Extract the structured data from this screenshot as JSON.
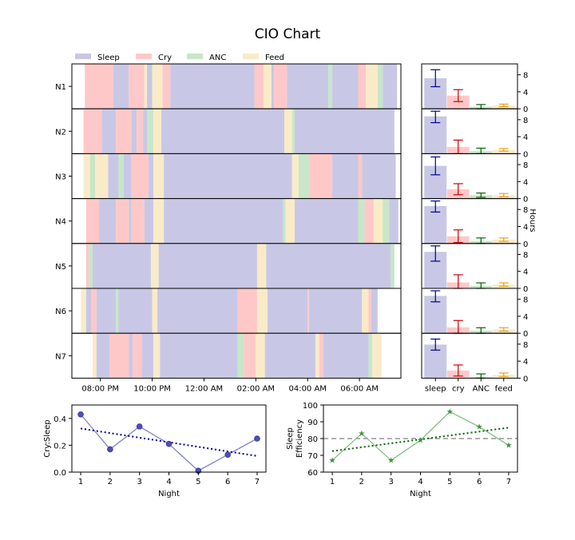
{
  "title": "CIO Chart",
  "colors": {
    "sleep": "#c8c8e6",
    "cry": "#ffc8c8",
    "anc": "#c8e6c8",
    "feed": "#faebc8"
  },
  "chart_data": [
    {
      "type": "timeline",
      "legend": [
        {
          "key": "sleep",
          "label": "Sleep"
        },
        {
          "key": "cry",
          "label": "Cry"
        },
        {
          "key": "anc",
          "label": "ANC"
        },
        {
          "key": "feed",
          "label": "Feed"
        }
      ],
      "x_ticks": [
        "08:00 PM",
        "10:00 PM",
        "12:00 AM",
        "02:00 AM",
        "04:00 AM",
        "06:00 AM"
      ],
      "x_tick_hours": [
        20,
        22,
        24,
        26,
        28,
        30
      ],
      "xlim_hours": [
        18.9,
        31.6
      ],
      "nights": [
        {
          "label": "N1",
          "segments": [
            [
              "cry",
              19.4,
              20.5
            ],
            [
              "sleep",
              20.5,
              21.1
            ],
            [
              "cry",
              21.1,
              21.7
            ],
            [
              "feed",
              21.7,
              21.8
            ],
            [
              "sleep",
              21.8,
              22.0
            ],
            [
              "feed",
              22.0,
              22.4
            ],
            [
              "cry",
              22.4,
              22.7
            ],
            [
              "sleep",
              22.7,
              25.95
            ],
            [
              "cry",
              25.95,
              26.3
            ],
            [
              "feed",
              26.3,
              26.6
            ],
            [
              "sleep",
              26.6,
              26.7
            ],
            [
              "cry",
              26.7,
              27.2
            ],
            [
              "sleep",
              27.2,
              28.8
            ],
            [
              "anc",
              28.8,
              28.95
            ],
            [
              "sleep",
              28.95,
              29.95
            ],
            [
              "cry",
              29.95,
              30.25
            ],
            [
              "feed",
              30.25,
              30.7
            ],
            [
              "anc",
              30.7,
              30.9
            ],
            [
              "sleep",
              30.9,
              31.45
            ]
          ]
        },
        {
          "label": "N2",
          "segments": [
            [
              "cry",
              19.35,
              20.05
            ],
            [
              "sleep",
              20.05,
              20.6
            ],
            [
              "cry",
              20.6,
              21.2
            ],
            [
              "sleep",
              21.2,
              21.4
            ],
            [
              "cry",
              21.4,
              21.65
            ],
            [
              "sleep",
              21.65,
              21.8
            ],
            [
              "anc",
              21.8,
              22.05
            ],
            [
              "feed",
              22.05,
              22.35
            ],
            [
              "sleep",
              22.35,
              27.1
            ],
            [
              "feed",
              27.1,
              27.4
            ],
            [
              "anc",
              27.4,
              27.5
            ],
            [
              "sleep",
              27.5,
              31.35
            ]
          ]
        },
        {
          "label": "N3",
          "segments": [
            [
              "feed",
              19.35,
              19.6
            ],
            [
              "anc",
              19.6,
              19.8
            ],
            [
              "feed",
              19.8,
              20.3
            ],
            [
              "sleep",
              20.3,
              20.7
            ],
            [
              "anc",
              20.7,
              20.9
            ],
            [
              "sleep",
              20.9,
              21.2
            ],
            [
              "cry",
              21.2,
              21.85
            ],
            [
              "sleep",
              21.85,
              22.05
            ],
            [
              "feed",
              22.05,
              22.45
            ],
            [
              "sleep",
              22.45,
              27.4
            ],
            [
              "feed",
              27.4,
              27.65
            ],
            [
              "anc",
              27.65,
              28.05
            ],
            [
              "cry",
              28.05,
              28.95
            ],
            [
              "sleep",
              28.95,
              29.95
            ],
            [
              "cry",
              29.95,
              30.1
            ],
            [
              "sleep",
              30.1,
              31.4
            ]
          ]
        },
        {
          "label": "N4",
          "segments": [
            [
              "cry",
              19.45,
              19.95
            ],
            [
              "sleep",
              19.95,
              20.6
            ],
            [
              "cry",
              20.6,
              21.1
            ],
            [
              "sleep",
              21.1,
              21.2
            ],
            [
              "cry",
              21.2,
              21.7
            ],
            [
              "sleep",
              21.7,
              22.05
            ],
            [
              "feed",
              22.05,
              22.45
            ],
            [
              "sleep",
              22.45,
              27.05
            ],
            [
              "anc",
              27.05,
              27.15
            ],
            [
              "feed",
              27.15,
              27.5
            ],
            [
              "sleep",
              27.5,
              29.95
            ],
            [
              "anc",
              29.95,
              30.2
            ],
            [
              "cry",
              30.2,
              30.55
            ],
            [
              "feed",
              30.55,
              30.9
            ],
            [
              "anc",
              30.9,
              31.15
            ],
            [
              "sleep",
              31.15,
              31.5
            ]
          ]
        },
        {
          "label": "N5",
          "segments": [
            [
              "cry",
              19.45,
              19.55
            ],
            [
              "anc",
              19.55,
              19.7
            ],
            [
              "sleep",
              19.7,
              21.95
            ],
            [
              "feed",
              21.95,
              22.25
            ],
            [
              "sleep",
              22.25,
              26.05
            ],
            [
              "feed",
              26.05,
              26.4
            ],
            [
              "sleep",
              26.4,
              31.2
            ],
            [
              "anc",
              31.2,
              31.35
            ]
          ]
        },
        {
          "label": "N6",
          "segments": [
            [
              "feed",
              19.25,
              19.45
            ],
            [
              "sleep",
              19.45,
              19.65
            ],
            [
              "cry",
              19.65,
              19.85
            ],
            [
              "sleep",
              19.85,
              20.6
            ],
            [
              "anc",
              20.6,
              20.7
            ],
            [
              "sleep",
              20.7,
              22.0
            ],
            [
              "feed",
              22.0,
              22.2
            ],
            [
              "sleep",
              22.2,
              25.3
            ],
            [
              "cry",
              25.3,
              26.05
            ],
            [
              "feed",
              26.05,
              26.45
            ],
            [
              "sleep",
              26.45,
              28.0
            ],
            [
              "cry",
              28.0,
              28.05
            ],
            [
              "sleep",
              28.05,
              30.1
            ],
            [
              "feed",
              30.1,
              30.35
            ],
            [
              "cry",
              30.35,
              30.45
            ],
            [
              "sleep",
              30.45,
              30.7
            ]
          ]
        },
        {
          "label": "N7",
          "segments": [
            [
              "feed",
              19.7,
              19.85
            ],
            [
              "sleep",
              19.85,
              20.35
            ],
            [
              "cry",
              20.35,
              21.1
            ],
            [
              "sleep",
              21.1,
              21.25
            ],
            [
              "cry",
              21.25,
              21.6
            ],
            [
              "sleep",
              21.6,
              22.05
            ],
            [
              "feed",
              22.05,
              22.3
            ],
            [
              "sleep",
              22.3,
              25.3
            ],
            [
              "anc",
              25.3,
              25.55
            ],
            [
              "cry",
              25.55,
              26.0
            ],
            [
              "feed",
              26.0,
              26.35
            ],
            [
              "sleep",
              26.35,
              28.3
            ],
            [
              "feed",
              28.3,
              28.45
            ],
            [
              "cry",
              28.45,
              28.6
            ],
            [
              "sleep",
              28.6,
              30.35
            ],
            [
              "anc",
              30.35,
              30.5
            ],
            [
              "feed",
              30.5,
              30.85
            ]
          ]
        }
      ]
    },
    {
      "type": "bar",
      "ylabel": "Hours",
      "categories": [
        "sleep",
        "cry",
        "ANC",
        "feed"
      ],
      "ylim": [
        0,
        10
      ],
      "yticks": [
        0,
        4,
        8
      ],
      "error_colors": [
        "#00008b",
        "#cc0000",
        "#006400",
        "#e8a317"
      ],
      "nights": [
        {
          "label": "N1",
          "values": [
            7.2,
            3.1,
            0.5,
            0.8
          ],
          "errors": [
            2.0,
            1.4,
            0.5,
            0.3
          ]
        },
        {
          "label": "N2",
          "values": [
            8.8,
            1.6,
            0.6,
            0.9
          ],
          "errors": [
            1.5,
            1.6,
            0.7,
            0.3
          ]
        },
        {
          "label": "N3",
          "values": [
            7.7,
            2.2,
            0.8,
            0.8
          ],
          "errors": [
            2.1,
            1.3,
            0.5,
            0.4
          ]
        },
        {
          "label": "N4",
          "values": [
            8.8,
            1.7,
            0.6,
            0.9
          ],
          "errors": [
            1.4,
            1.5,
            0.7,
            0.4
          ]
        },
        {
          "label": "N5",
          "values": [
            8.6,
            1.4,
            0.6,
            0.9
          ],
          "errors": [
            2.2,
            1.8,
            0.7,
            0.4
          ]
        },
        {
          "label": "N6",
          "values": [
            8.8,
            1.4,
            0.6,
            0.9
          ],
          "errors": [
            1.4,
            1.6,
            0.7,
            0.4
          ]
        },
        {
          "label": "N7",
          "values": [
            7.9,
            1.8,
            0.3,
            0.8
          ],
          "errors": [
            1.3,
            1.3,
            0.7,
            0.4
          ]
        }
      ]
    },
    {
      "type": "line",
      "xlabel": "Night",
      "ylabel": "Cry:Sleep",
      "x": [
        1,
        2,
        3,
        4,
        5,
        6,
        7
      ],
      "y": [
        0.43,
        0.17,
        0.34,
        0.21,
        0.01,
        0.13,
        0.25
      ],
      "trend": [
        0.325,
        0.12
      ],
      "xlim": [
        0.7,
        7.3
      ],
      "ylim": [
        0,
        0.5
      ],
      "yticks": [
        "0.0",
        "0.2",
        "0.4"
      ],
      "ytick_values": [
        0,
        0.2,
        0.4
      ],
      "line_color": "#8080c8",
      "trend_color": "#00008b"
    },
    {
      "type": "line",
      "xlabel": "Night",
      "ylabel": "Sleep Efficiency",
      "ylabel_lines": [
        "Sleep",
        "Efficiency"
      ],
      "x": [
        1,
        2,
        3,
        4,
        5,
        6,
        7
      ],
      "y": [
        67,
        83,
        67,
        79,
        96,
        87,
        76
      ],
      "trend": [
        72.5,
        86.5
      ],
      "reference_line": 80,
      "xlim": [
        0.7,
        7.3
      ],
      "ylim": [
        60,
        100
      ],
      "yticks": [
        60,
        70,
        80,
        90,
        100
      ],
      "line_color": "#80c080",
      "trend_color": "#006400"
    }
  ]
}
